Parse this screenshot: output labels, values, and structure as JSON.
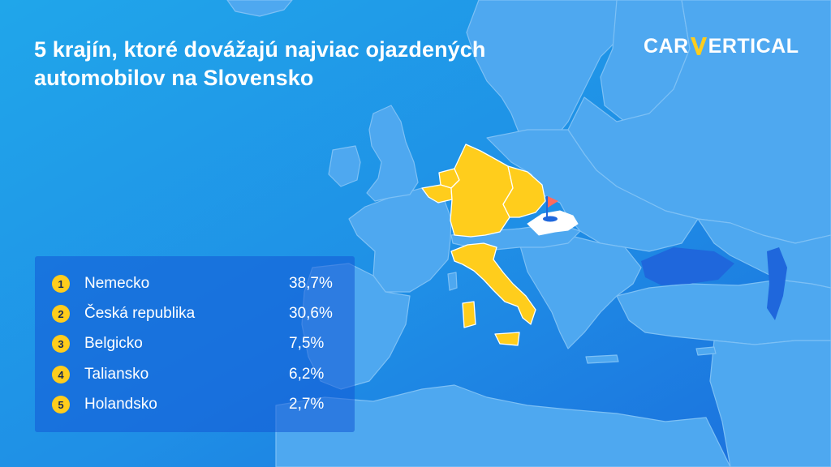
{
  "title": {
    "line1": "5 krajín, ktoré dovážajú najviac ojazdených",
    "line2": "automobilov na Slovensko"
  },
  "logo": {
    "left": "CAR",
    "right": "ERTICAL",
    "v_color": "#ffcd1c"
  },
  "colors": {
    "background": "#1f8fe6",
    "land": "#4ea8f0",
    "borders": "#7dc0f5",
    "highlight": "#ffcd1c",
    "slovakia": "#ffffff",
    "flag": "#ff6b5e",
    "rank_badge": "#ffcd1c"
  },
  "map": {
    "highlighted_countries": [
      "Nemecko",
      "Česká republika",
      "Belgicko",
      "Taliansko",
      "Holandsko"
    ],
    "target_country": "Slovensko",
    "marker_icon": "flag-pin-icon"
  },
  "ranking": [
    {
      "rank": "1",
      "country": "Nemecko",
      "share": "38,7%",
      "value": 38.7
    },
    {
      "rank": "2",
      "country": "Česká republika",
      "share": "30,6%",
      "value": 30.6
    },
    {
      "rank": "3",
      "country": "Belgicko",
      "share": "7,5%",
      "value": 7.5
    },
    {
      "rank": "4",
      "country": "Taliansko",
      "share": "6,2%",
      "value": 6.2
    },
    {
      "rank": "5",
      "country": "Holandsko",
      "share": "2,7%",
      "value": 2.7
    }
  ]
}
